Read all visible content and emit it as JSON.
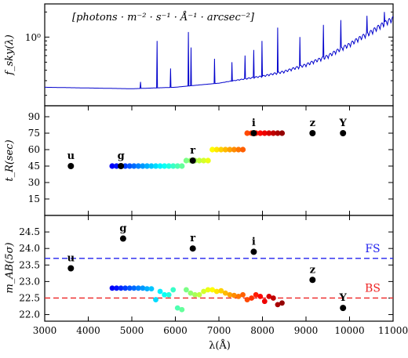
{
  "chart_data": [
    {
      "type": "line",
      "ylabel": "f_sky(λ)",
      "annotation": "[photons · m⁻² · s⁻¹ · Å⁻¹ · arcsec⁻²]",
      "yscale": "log",
      "ytick_labels": [
        "10⁰"
      ],
      "xlim": [
        3000,
        11000
      ],
      "color": "#0000cc",
      "continuum": [
        [
          3000,
          0.25
        ],
        [
          4000,
          0.245
        ],
        [
          5000,
          0.24
        ],
        [
          6000,
          0.25
        ],
        [
          7000,
          0.28
        ],
        [
          8000,
          0.33
        ],
        [
          8500,
          0.37
        ],
        [
          9000,
          0.44
        ],
        [
          9500,
          0.55
        ],
        [
          10000,
          0.75
        ],
        [
          10500,
          1.05
        ],
        [
          11000,
          1.5
        ]
      ],
      "emission_lines": [
        [
          5200,
          0.29
        ],
        [
          5577,
          0.9
        ],
        [
          5890,
          0.42
        ],
        [
          6300,
          1.15
        ],
        [
          6364,
          0.75
        ],
        [
          6900,
          0.55
        ],
        [
          7300,
          0.5
        ],
        [
          7600,
          0.6
        ],
        [
          7800,
          0.7
        ],
        [
          7990,
          0.9
        ],
        [
          8350,
          1.3
        ],
        [
          8860,
          1.0
        ],
        [
          9400,
          1.4
        ],
        [
          9800,
          1.6
        ],
        [
          10400,
          1.8
        ],
        [
          10800,
          2.0
        ]
      ]
    },
    {
      "type": "scatter",
      "ylabel": "t_R(sec)",
      "xlim": [
        3000,
        11000
      ],
      "ylim": [
        0,
        100
      ],
      "yticks": [
        15,
        30,
        45,
        60,
        75,
        90
      ],
      "broad_bands": [
        {
          "label": "u",
          "x": 3600,
          "y": 45
        },
        {
          "label": "g",
          "x": 4750,
          "y": 45
        },
        {
          "label": "r",
          "x": 6400,
          "y": 50
        },
        {
          "label": "i",
          "x": 7800,
          "y": 75
        },
        {
          "label": "z",
          "x": 9150,
          "y": 75
        },
        {
          "label": "Y",
          "x": 9850,
          "y": 75
        }
      ],
      "narrow_bands": {
        "x": [
          4550,
          4650,
          4750,
          4850,
          4950,
          5050,
          5150,
          5250,
          5350,
          5450,
          5550,
          5650,
          5750,
          5850,
          5950,
          6050,
          6150,
          6250,
          6350,
          6450,
          6550,
          6650,
          6750,
          6850,
          6950,
          7050,
          7150,
          7250,
          7350,
          7450,
          7550,
          7650,
          7750,
          7850,
          7950,
          8050,
          8150,
          8250,
          8350,
          8450
        ],
        "y": [
          45,
          45,
          45,
          45,
          45,
          45,
          45,
          45,
          45,
          45,
          45,
          45,
          45,
          45,
          45,
          45,
          45,
          50,
          50,
          50,
          50,
          50,
          50,
          60,
          60,
          60,
          60,
          60,
          60,
          60,
          60,
          75,
          75,
          75,
          75,
          75,
          75,
          75,
          75,
          75
        ]
      }
    },
    {
      "type": "scatter",
      "ylabel": "m_AB(5σ)",
      "xlabel": "λ(Å)",
      "xlim": [
        3000,
        11000
      ],
      "ylim": [
        21.8,
        25.0
      ],
      "xticks": [
        3000,
        4000,
        5000,
        6000,
        7000,
        8000,
        9000,
        10000,
        11000
      ],
      "yticks": [
        22.0,
        22.5,
        23.0,
        23.5,
        24.0,
        24.5
      ],
      "broad_bands": [
        {
          "label": "u",
          "x": 3600,
          "y": 23.4
        },
        {
          "label": "g",
          "x": 4800,
          "y": 24.3
        },
        {
          "label": "r",
          "x": 6400,
          "y": 24.0
        },
        {
          "label": "i",
          "x": 7800,
          "y": 23.9
        },
        {
          "label": "z",
          "x": 9150,
          "y": 23.05
        },
        {
          "label": "Y",
          "x": 9850,
          "y": 22.2
        }
      ],
      "narrow_bands": {
        "x": [
          4550,
          4650,
          4750,
          4850,
          4950,
          5050,
          5150,
          5250,
          5350,
          5450,
          5550,
          5650,
          5750,
          5850,
          5950,
          6050,
          6150,
          6250,
          6350,
          6450,
          6550,
          6650,
          6750,
          6850,
          6950,
          7050,
          7150,
          7250,
          7350,
          7450,
          7550,
          7650,
          7750,
          7850,
          7950,
          8050,
          8150,
          8250,
          8350,
          8450
        ],
        "y": [
          22.8,
          22.8,
          22.8,
          22.8,
          22.8,
          22.8,
          22.8,
          22.8,
          22.78,
          22.78,
          22.45,
          22.7,
          22.6,
          22.6,
          22.75,
          22.2,
          22.15,
          22.75,
          22.65,
          22.6,
          22.6,
          22.7,
          22.75,
          22.75,
          22.7,
          22.72,
          22.65,
          22.6,
          22.58,
          22.55,
          22.6,
          22.45,
          22.5,
          22.6,
          22.55,
          22.4,
          22.55,
          22.5,
          22.3,
          22.35
        ]
      },
      "reference_lines": [
        {
          "label": "FS",
          "y": 23.7,
          "color": "#2222ee"
        },
        {
          "label": "BS",
          "y": 22.5,
          "color": "#ee2222"
        }
      ]
    }
  ]
}
